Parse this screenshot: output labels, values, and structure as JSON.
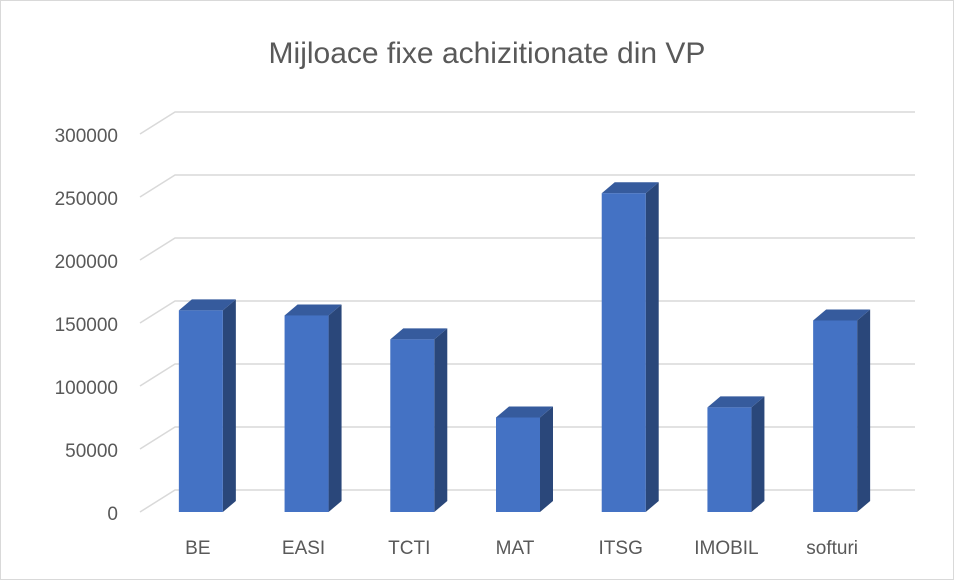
{
  "chart_data": {
    "type": "bar3d",
    "title": "Mijloace fixe achizitionate din VP",
    "categories": [
      "BE",
      "EASI",
      "TCTI",
      "MAT",
      "ITSG",
      "IMOBIL",
      "softuri"
    ],
    "values": [
      160000,
      156000,
      137000,
      75000,
      253000,
      83000,
      152000
    ],
    "color": "#4472c4",
    "ylim": [
      0,
      300000
    ],
    "yticks": [
      0,
      50000,
      100000,
      150000,
      200000,
      250000,
      300000
    ],
    "grid": true
  }
}
